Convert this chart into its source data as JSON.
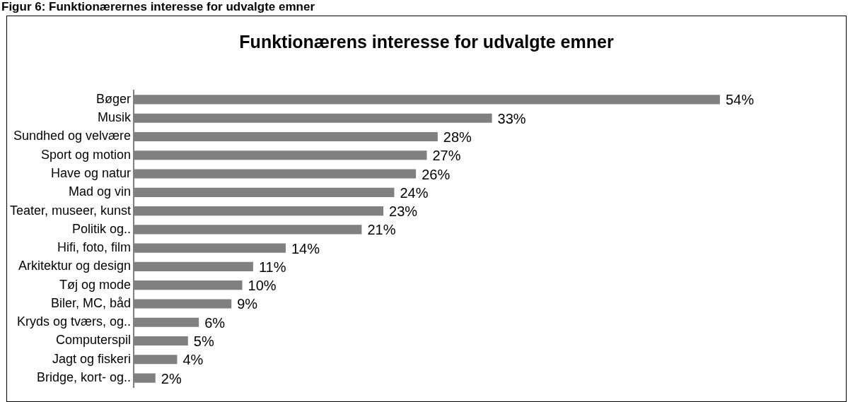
{
  "chart_data": {
    "type": "bar",
    "orientation": "horizontal",
    "title": "Funktionærens interesse for udvalgte emner",
    "annotations": [
      "Figur 6: Funktionærernes interesse for udvalgte emner"
    ],
    "categories": [
      "Bøger",
      "Musik",
      "Sundhed og velvære",
      "Sport og motion",
      "Have og natur",
      "Mad og vin",
      "Teater, museer, kunst",
      "Politik og..",
      "Hifi, foto, film",
      "Arkitektur og design",
      "Tøj og mode",
      "Biler, MC, båd",
      "Kryds og tværs, og..",
      "Computerspil",
      "Jagt og fiskeri",
      "Bridge, kort- og.."
    ],
    "values": [
      54,
      33,
      28,
      27,
      26,
      24,
      23,
      21,
      14,
      11,
      10,
      9,
      6,
      5,
      4,
      2
    ],
    "value_labels": [
      "54%",
      "33%",
      "28%",
      "27%",
      "26%",
      "24%",
      "23%",
      "21%",
      "14%",
      "11%",
      "10%",
      "9%",
      "6%",
      "5%",
      "4%",
      "2%"
    ],
    "color": "#808080",
    "tick_labels": "y",
    "legend": false
  }
}
